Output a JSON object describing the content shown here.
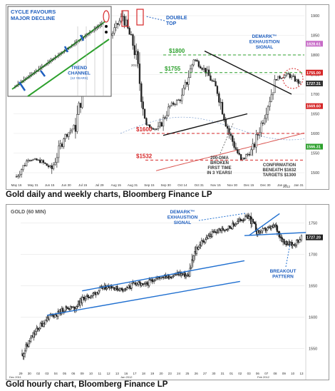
{
  "charts": [
    {
      "caption": "Gold daily and weekly charts, Bloomberg Finance LP",
      "y_axis": {
        "ticks": [
          1500,
          1550,
          1600,
          1650,
          1700,
          1750,
          1800,
          1850,
          1900
        ]
      },
      "x_axis": {
        "tick_labels": [
          "May 16",
          "May 31",
          "Jun 15",
          "Jun 30",
          "Jul 15",
          "Jul 29",
          "Aug 15",
          "Aug 31",
          "Sep 15",
          "Sep 30",
          "Oct 14",
          "Oct 31",
          "Nov 15",
          "Nov 30",
          "Dec 15",
          "Dec 30",
          "Jan 16",
          "Jan 31"
        ],
        "period_labels": [
          "2011",
          "2012"
        ]
      },
      "price_tags": [
        "1828.61",
        "1755.00",
        "1727.31",
        "1669.60",
        "1566.31"
      ],
      "levels": [
        "$1800",
        "$1755",
        "$1600",
        "$1532"
      ],
      "annotations": {
        "double_top": "DOUBLE\nTOP",
        "demark": "DEMARK™\nEXHAUSTION\nSIGNAL",
        "dma": "200-DMA\nBROKEN\nFIRST TIME\nIN 3 YEARS!",
        "confirmation": "CONFIRMATION\nBENEATH $1632\nTARGETS $1300"
      },
      "inset": {
        "title": "CYCLE FAVOURS\nMAJOR DECLINE",
        "channel_label": "TREND\nCHANNEL",
        "channel_sub": "(12 YEARS)"
      }
    },
    {
      "caption": "Gold hourly chart, Bloomberg Finance LP",
      "title": "GOLD (60 MIN)",
      "y_axis": {
        "ticks": [
          1550,
          1600,
          1650,
          1700,
          1750
        ]
      },
      "x_axis": {
        "tick_labels": [
          "29",
          "30",
          "02",
          "03",
          "04",
          "05",
          "06",
          "09",
          "10",
          "11",
          "12",
          "13",
          "16",
          "17",
          "18",
          "19",
          "20",
          "23",
          "24",
          "25",
          "26",
          "27",
          "30",
          "31",
          "01",
          "02",
          "03",
          "06",
          "07",
          "08",
          "09",
          "10",
          "13"
        ],
        "period_labels": [
          "Dec 2011",
          "Jan 2012",
          "Feb 2012"
        ]
      },
      "price_tag": "1727.20",
      "annotations": {
        "demark": "DEMARK™\nEXHAUSTION\nSIGNAL",
        "breakout": "BREAKOUT\nPATTERN"
      }
    }
  ],
  "chart_data": [
    {
      "type": "line",
      "title": "",
      "x": [
        "May 16",
        "May 31",
        "Jun 15",
        "Jun 30",
        "Jul 15",
        "Jul 29",
        "Aug 15",
        "Aug 23",
        "Aug 31",
        "Sep 06",
        "Sep 15",
        "Sep 26",
        "Sep 30",
        "Oct 14",
        "Oct 31",
        "Nov 08",
        "Nov 15",
        "Nov 30",
        "Dec 15",
        "Dec 29",
        "Dec 30",
        "Jan 16",
        "Jan 31",
        "Feb 08",
        "Feb 15"
      ],
      "series": [
        {
          "values": [
            1490,
            1535,
            1530,
            1510,
            1590,
            1620,
            1770,
            1880,
            1850,
            1900,
            1815,
            1620,
            1610,
            1670,
            1690,
            1790,
            1760,
            1710,
            1600,
            1530,
            1560,
            1650,
            1740,
            1750,
            1727
          ]
        }
      ],
      "ylim": [
        1480,
        1920
      ],
      "horizontal_levels": [
        1800,
        1755,
        1600,
        1532
      ]
    },
    {
      "type": "line",
      "title": "GOLD (60 MIN)",
      "x": [
        "29",
        "30",
        "02",
        "03",
        "04",
        "05",
        "06",
        "09",
        "10",
        "11",
        "12",
        "13",
        "16",
        "17",
        "18",
        "19",
        "20",
        "23",
        "24",
        "25",
        "26",
        "27",
        "30",
        "31",
        "01",
        "02",
        "03",
        "06",
        "07",
        "08",
        "09",
        "10",
        "13"
      ],
      "series": [
        {
          "values": [
            1540,
            1565,
            1585,
            1600,
            1605,
            1615,
            1615,
            1630,
            1635,
            1645,
            1650,
            1645,
            1645,
            1655,
            1650,
            1660,
            1665,
            1665,
            1670,
            1665,
            1710,
            1725,
            1735,
            1740,
            1745,
            1755,
            1760,
            1735,
            1740,
            1745,
            1720,
            1715,
            1727
          ]
        }
      ],
      "ylim": [
        1520,
        1770
      ]
    }
  ]
}
